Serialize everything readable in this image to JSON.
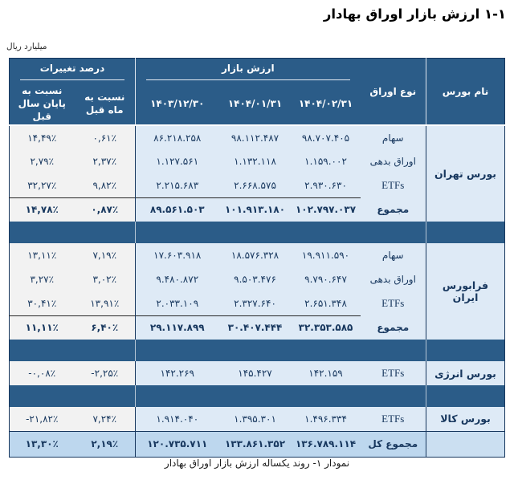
{
  "page": {
    "title": "۱-۱ ارزش بازار اوراق بهادار",
    "unit_label": "میلیارد ریال",
    "caption": "نمودار ۱- روند یکساله ارزش بازار اوراق بهادار"
  },
  "table": {
    "headers": {
      "exchange": "نام بورس",
      "security_type": "نوع اوراق",
      "market_value_group": "ارزش بازار",
      "pct_change_group": "درصد تغییرات",
      "date_1": "۱۴۰۴/۰۲/۳۱",
      "date_2": "۱۴۰۴/۰۱/۳۱",
      "date_3": "۱۴۰۳/۱۲/۳۰",
      "vs_prev_month": "نسبت به ماه قبل",
      "vs_prev_year_end": "نسبت به پایان سال قبل"
    },
    "sections": [
      {
        "exchange": "بورس تهران",
        "rows": [
          {
            "type": "سهام",
            "latin": false,
            "total": false,
            "values": [
              "۹۸.۷۰۷.۴۰۵",
              "۹۸.۱۱۲.۴۸۷",
              "۸۶.۲۱۸.۲۵۸"
            ],
            "pct_month": "۰,۶۱٪",
            "pct_year": "۱۴,۴۹٪"
          },
          {
            "type": "اوراق بدهی",
            "latin": false,
            "total": false,
            "values": [
              "۱.۱۵۹.۰۰۲",
              "۱.۱۳۲.۱۱۸",
              "۱.۱۲۷.۵۶۱"
            ],
            "pct_month": "۲,۳۷٪",
            "pct_year": "۲,۷۹٪"
          },
          {
            "type": "ETFs",
            "latin": true,
            "total": false,
            "values": [
              "۲.۹۳۰.۶۳۰",
              "۲.۶۶۸.۵۷۵",
              "۲.۲۱۵.۶۸۳"
            ],
            "pct_month": "۹,۸۲٪",
            "pct_year": "۳۲,۲۷٪"
          },
          {
            "type": "مجموع",
            "latin": false,
            "total": true,
            "values": [
              "۱۰۲.۷۹۷.۰۳۷",
              "۱۰۱.۹۱۳.۱۸۰",
              "۸۹.۵۶۱.۵۰۳"
            ],
            "pct_month": "۰,۸۷٪",
            "pct_year": "۱۴,۷۸٪"
          }
        ]
      },
      {
        "exchange": "فرابورس ایران",
        "rows": [
          {
            "type": "سهام",
            "latin": false,
            "total": false,
            "values": [
              "۱۹.۹۱۱.۵۹۰",
              "۱۸.۵۷۶.۳۲۸",
              "۱۷.۶۰۳.۹۱۸"
            ],
            "pct_month": "۷,۱۹٪",
            "pct_year": "۱۳,۱۱٪"
          },
          {
            "type": "اوراق بدهی",
            "latin": false,
            "total": false,
            "values": [
              "۹.۷۹۰.۶۴۷",
              "۹.۵۰۳.۴۷۶",
              "۹.۴۸۰.۸۷۲"
            ],
            "pct_month": "۳,۰۲٪",
            "pct_year": "۳,۲۷٪"
          },
          {
            "type": "ETFs",
            "latin": true,
            "total": false,
            "values": [
              "۲.۶۵۱.۳۴۸",
              "۲.۳۲۷.۶۴۰",
              "۲.۰۳۳.۱۰۹"
            ],
            "pct_month": "۱۳,۹۱٪",
            "pct_year": "۳۰,۴۱٪"
          },
          {
            "type": "مجموع",
            "latin": false,
            "total": true,
            "values": [
              "۳۲.۳۵۳.۵۸۵",
              "۳۰.۴۰۷.۴۴۴",
              "۲۹.۱۱۷.۸۹۹"
            ],
            "pct_month": "۶,۴۰٪",
            "pct_year": "۱۱,۱۱٪"
          }
        ]
      },
      {
        "exchange": "بورس انرژی",
        "rows": [
          {
            "type": "ETFs",
            "latin": true,
            "total": false,
            "values": [
              "۱۴۲.۱۵۹",
              "۱۴۵.۴۲۷",
              "۱۴۲.۲۶۹"
            ],
            "pct_month": "-۲,۲۵٪",
            "pct_year": "-۰,۰۸٪"
          }
        ]
      },
      {
        "exchange": "بورس کالا",
        "rows": [
          {
            "type": "ETFs",
            "latin": true,
            "total": false,
            "values": [
              "۱.۴۹۶.۳۳۴",
              "۱.۳۹۵.۳۰۱",
              "۱.۹۱۴.۰۴۰"
            ],
            "pct_month": "۷,۲۴٪",
            "pct_year": "-۲۱,۸۲٪"
          }
        ]
      }
    ],
    "grand_total": {
      "label": "مجموع کل",
      "values": [
        "۱۳۶.۷۸۹.۱۱۴",
        "۱۳۳.۸۶۱.۳۵۲",
        "۱۲۰.۷۳۵.۷۱۱"
      ],
      "pct_month": "۲,۱۹٪",
      "pct_year": "۱۳,۳۰٪"
    }
  },
  "colors": {
    "header_blue": "#2B5C88",
    "light_blue_cell": "#DEEAF6",
    "gray_cell": "#F2F2F2",
    "grand_total_blue": "#BDD7EE",
    "navy_text": "#17375E"
  }
}
